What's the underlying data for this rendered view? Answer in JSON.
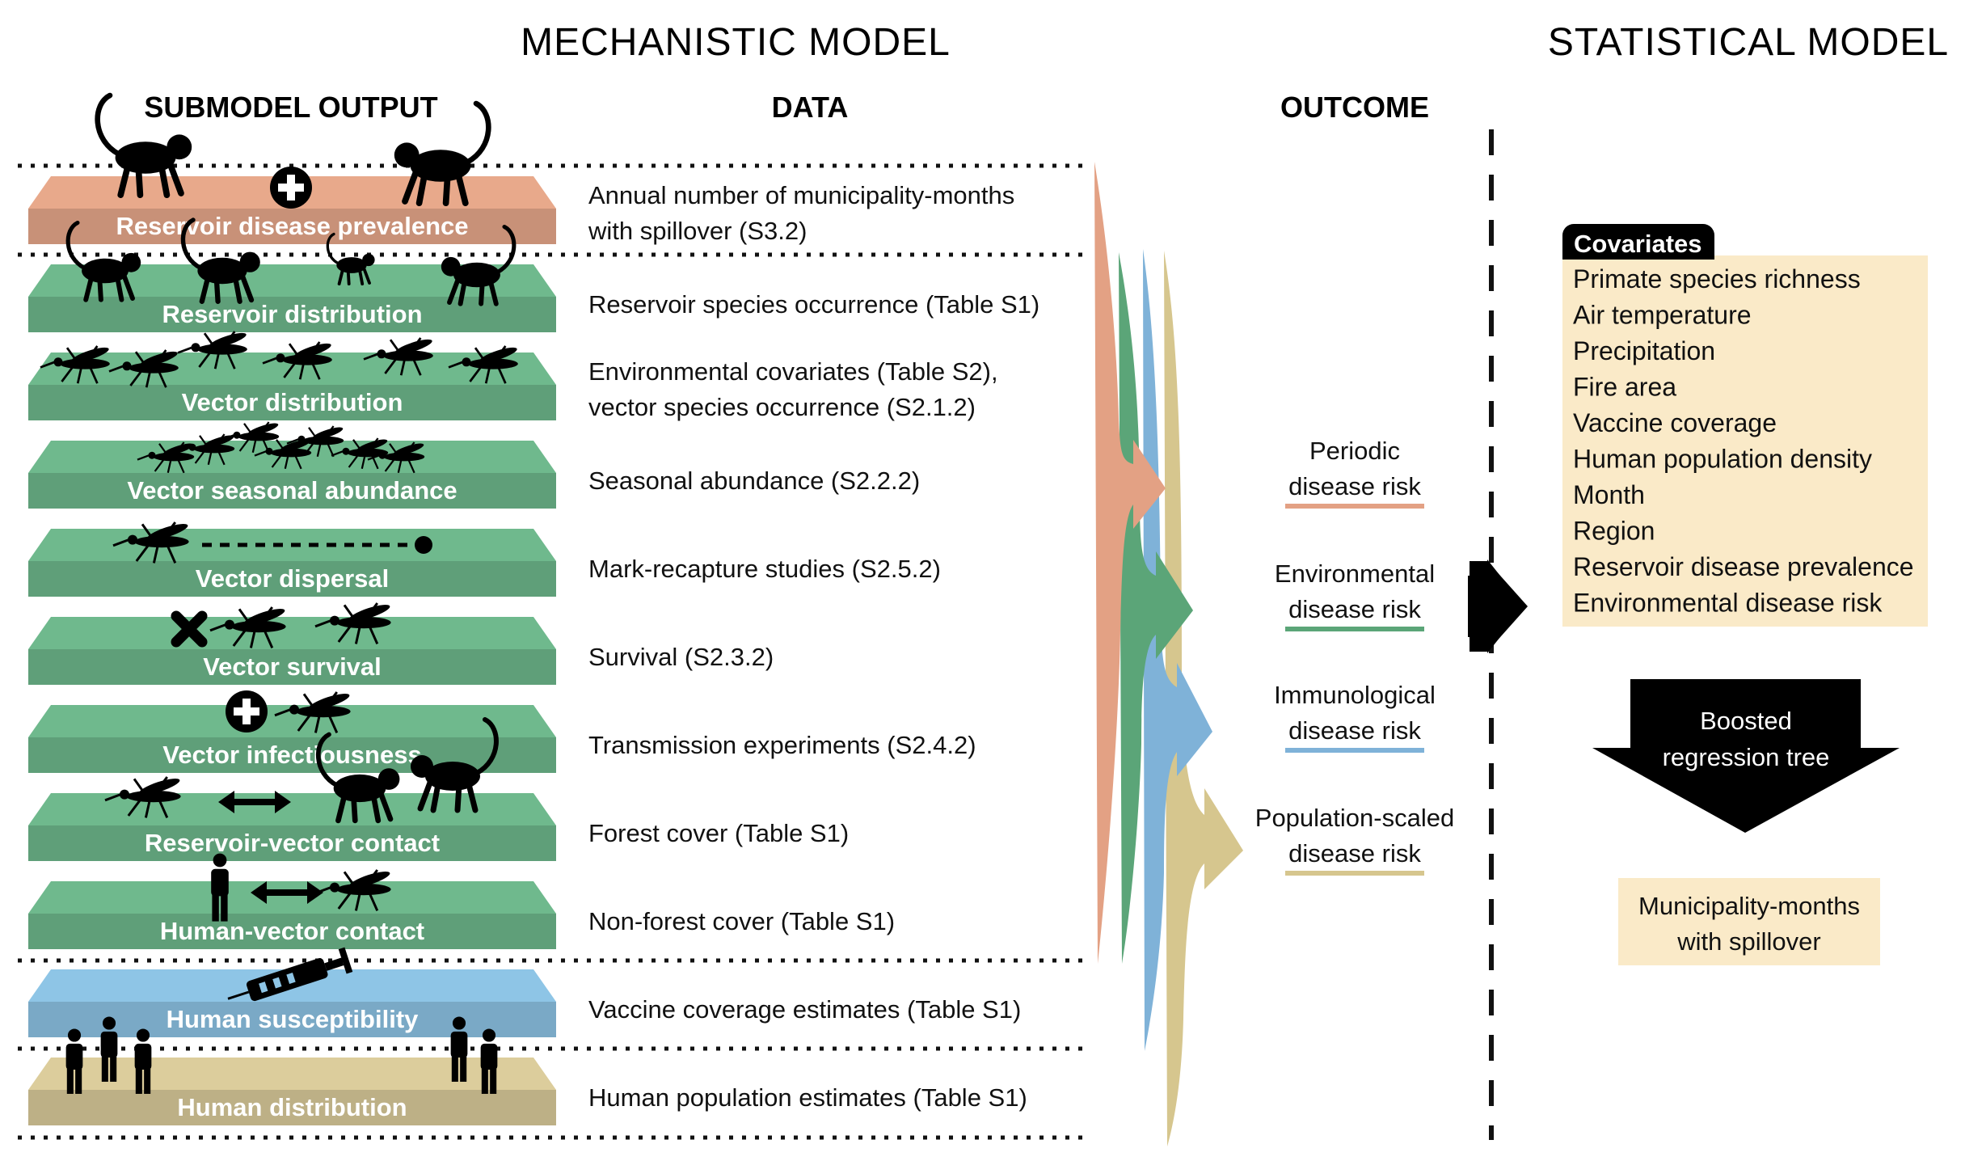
{
  "headers": {
    "mechanistic": "MECHANISTIC MODEL",
    "statistical": "STATISTICAL MODEL",
    "submodel_output": "SUBMODEL OUTPUT",
    "data": "DATA",
    "outcome": "OUTCOME"
  },
  "layers": [
    {
      "label": "Reservoir disease prevalence",
      "data": [
        "Annual number of municipality-months",
        "with spillover (S3.2)"
      ],
      "color": "#e8a98b"
    },
    {
      "label": "Reservoir distribution",
      "data": [
        "Reservoir species occurrence (Table S1)"
      ],
      "color": "#6fb98d"
    },
    {
      "label": "Vector distribution",
      "data": [
        "Environmental covariates (Table S2),",
        "vector species occurrence (S2.1.2)"
      ],
      "color": "#6fb98d"
    },
    {
      "label": "Vector seasonal abundance",
      "data": [
        "Seasonal abundance (S2.2.2)"
      ],
      "color": "#6fb98d"
    },
    {
      "label": "Vector dispersal",
      "data": [
        "Mark-recapture studies (S2.5.2)"
      ],
      "color": "#6fb98d"
    },
    {
      "label": "Vector survival",
      "data": [
        "Survival (S2.3.2)"
      ],
      "color": "#6fb98d"
    },
    {
      "label": "Vector infectiousness",
      "data": [
        "Transmission experiments (S2.4.2)"
      ],
      "color": "#6fb98d"
    },
    {
      "label": "Reservoir-vector contact",
      "data": [
        "Forest cover (Table S1)"
      ],
      "color": "#6fb98d"
    },
    {
      "label": "Human-vector contact",
      "data": [
        "Non-forest cover (Table S1)"
      ],
      "color": "#6fb98d"
    },
    {
      "label": "Human susceptibility",
      "data": [
        "Vaccine coverage estimates (Table S1)"
      ],
      "color": "#8ec5e6"
    },
    {
      "label": "Human distribution",
      "data": [
        "Human population estimates (Table S1)"
      ],
      "color": "#dccd9c"
    }
  ],
  "outcomes": [
    {
      "lines": [
        "Periodic",
        "disease risk"
      ],
      "color": "#e3a184"
    },
    {
      "lines": [
        "Environmental",
        "disease risk"
      ],
      "color": "#5ba578"
    },
    {
      "lines": [
        "Immunological",
        "disease risk"
      ],
      "color": "#7fb2d8"
    },
    {
      "lines": [
        "Population-scaled",
        "disease risk"
      ],
      "color": "#d6c68e"
    }
  ],
  "covariates": {
    "title": "Covariates",
    "items": [
      "Primate species richness",
      "Air temperature",
      "Precipitation",
      "Fire area",
      "Vaccine coverage",
      "Human population density",
      "Month",
      "Region",
      "Reservoir disease prevalence",
      "Environmental disease risk"
    ]
  },
  "brt": {
    "lines": [
      "Boosted",
      "regression tree"
    ]
  },
  "result": {
    "lines": [
      "Municipality-months",
      "with spillover"
    ]
  },
  "colors": {
    "reservoir": "#e8a98b",
    "green": "#6fb98d",
    "blue": "#8ec5e6",
    "tan": "#dccd9c",
    "covariate_bg": "#faeac8"
  }
}
